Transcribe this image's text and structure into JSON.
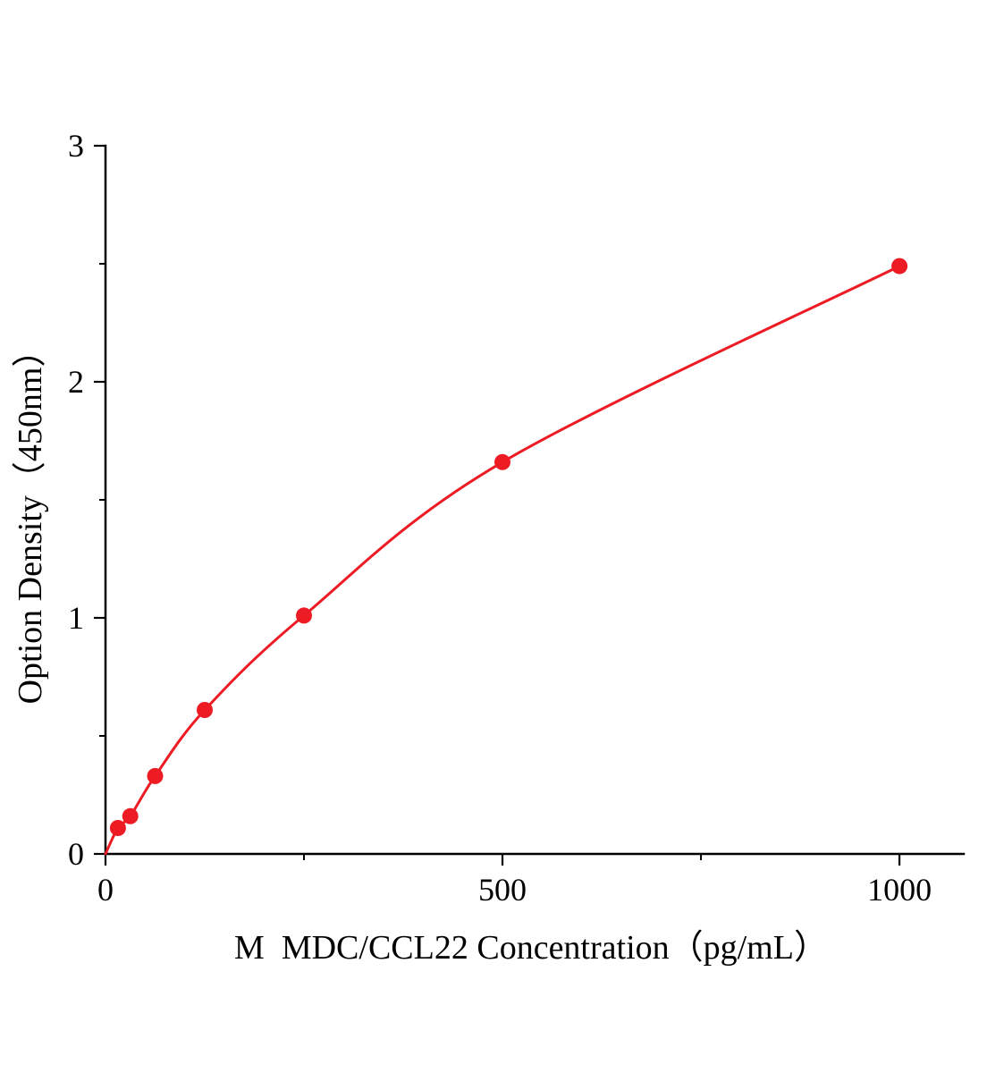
{
  "chart_data": {
    "type": "line",
    "title": "",
    "xlabel": "M  MDC/CCL22 Concentration（pg/mL）",
    "ylabel": "Option Density（450nm）",
    "x": [
      15.6,
      31.2,
      62.5,
      125,
      250,
      500,
      1000
    ],
    "y": [
      0.11,
      0.16,
      0.33,
      0.61,
      1.01,
      1.66,
      2.49
    ],
    "curve_start": [
      0,
      0
    ],
    "xlim": [
      0,
      1081
    ],
    "ylim": [
      0,
      3
    ],
    "x_major_ticks": [
      0,
      500,
      1000
    ],
    "x_major_tick_labels": [
      "0",
      "500",
      "1000"
    ],
    "x_minor_ticks": [
      250,
      750
    ],
    "y_major_ticks": [
      0,
      1,
      2,
      3
    ],
    "y_major_tick_labels": [
      "0",
      "1",
      "2",
      "3"
    ],
    "y_minor_ticks": [
      0.5,
      1.5,
      2.5
    ],
    "line_color": "#ed1c24",
    "marker_color": "#ed1c24",
    "marker_radius": 9,
    "axis_color": "#000000",
    "grid": false,
    "legend": null
  }
}
